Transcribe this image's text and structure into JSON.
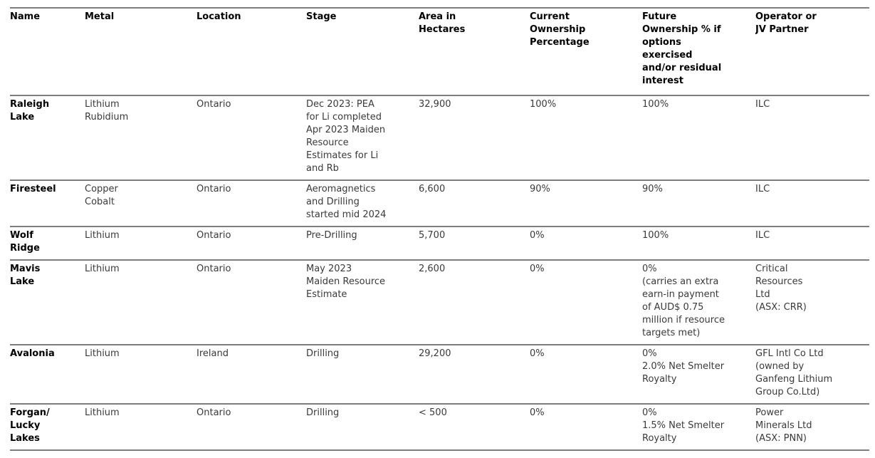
{
  "colors": {
    "background": "#ffffff",
    "header_text": "#000000",
    "body_text": "#3a3a3a",
    "name_text": "#000000",
    "border": "#7d7d7d"
  },
  "table": {
    "columns": [
      {
        "key": "name",
        "label": "Name"
      },
      {
        "key": "metal",
        "label": "Metal"
      },
      {
        "key": "location",
        "label": "Location"
      },
      {
        "key": "stage",
        "label": "Stage"
      },
      {
        "key": "area",
        "label": "Area in\nHectares"
      },
      {
        "key": "current",
        "label": "Current\nOwnership\nPercentage"
      },
      {
        "key": "future",
        "label": "Future\nOwnership % if\noptions\nexercised\nand/or residual\ninterest"
      },
      {
        "key": "operator",
        "label": "Operator or\nJV Partner"
      }
    ],
    "rows": [
      {
        "name": "Raleigh\nLake",
        "metal": "Lithium\nRubidium",
        "location": "Ontario",
        "stage": "Dec 2023: PEA\nfor Li completed\nApr 2023 Maiden\nResource\nEstimates for Li\nand Rb",
        "area": "32,900",
        "current": "100%",
        "future": "100%",
        "operator": "ILC"
      },
      {
        "name": "Firesteel",
        "metal": "Copper\nCobalt",
        "location": "Ontario",
        "stage": "Aeromagnetics\nand Drilling\nstarted mid 2024",
        "area": "6,600",
        "current": "90%",
        "future": "90%",
        "operator": "ILC"
      },
      {
        "name": "Wolf\nRidge",
        "metal": "Lithium",
        "location": "Ontario",
        "stage": "Pre-Drilling",
        "area": "5,700",
        "current": "0%",
        "future": "100%",
        "operator": "ILC"
      },
      {
        "name": "Mavis\nLake",
        "metal": "Lithium",
        "location": "Ontario",
        "stage": "May 2023\nMaiden Resource\nEstimate",
        "area": "2,600",
        "current": "0%",
        "future": "0%\n(carries an extra\nearn-in payment\nof AUD$ 0.75\nmillion if resource\ntargets met)",
        "operator": "Critical\nResources\nLtd\n(ASX: CRR)"
      },
      {
        "name": "Avalonia",
        "metal": "Lithium",
        "location": "Ireland",
        "stage": "Drilling",
        "area": "29,200",
        "current": "0%",
        "future": "0%\n2.0% Net Smelter\nRoyalty",
        "operator": "GFL Intl Co Ltd\n(owned by\nGanfeng Lithium\nGroup Co.Ltd)"
      },
      {
        "name": "Forgan/\nLucky\nLakes",
        "metal": "Lithium",
        "location": "Ontario",
        "stage": "Drilling",
        "area": "< 500",
        "current": "0%",
        "future": "0%\n1.5% Net Smelter\nRoyalty",
        "operator": "Power\nMinerals Ltd\n(ASX: PNN)"
      }
    ]
  }
}
